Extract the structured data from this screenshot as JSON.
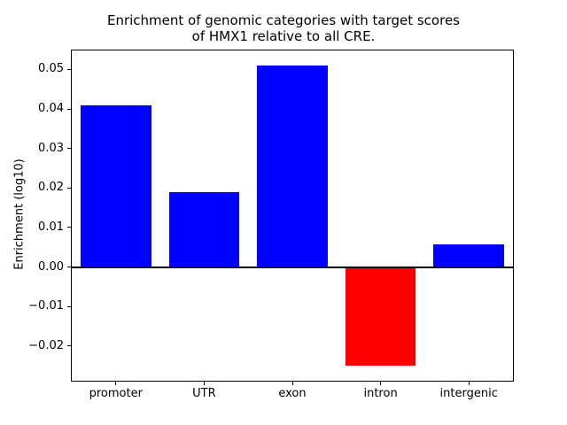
{
  "title_lines": [
    "Enrichment of genomic categories with target scores",
    "of HMX1 relative to all CRE."
  ],
  "chart_data": {
    "type": "bar",
    "title": "Enrichment of genomic categories with target scores of HMX1 relative to all CRE.",
    "categories": [
      "promoter",
      "UTR",
      "exon",
      "intron",
      "intergenic"
    ],
    "values": [
      0.041,
      0.019,
      0.051,
      -0.025,
      0.0057
    ],
    "bar_colors": [
      "#0000ff",
      "#0000ff",
      "#0000ff",
      "#ff0000",
      "#0000ff"
    ],
    "xlabel": "",
    "ylabel": "Enrichment (log10)",
    "ylim": [
      -0.0288,
      0.0548
    ],
    "yticks": [
      -0.02,
      -0.01,
      0.0,
      0.01,
      0.02,
      0.03,
      0.04,
      0.05
    ],
    "ytick_labels": [
      "−0.02",
      "−0.01",
      "0.00",
      "0.01",
      "0.02",
      "0.03",
      "0.04",
      "0.05"
    ],
    "bar_width_fraction": 0.8,
    "zero_line": true,
    "grid": false,
    "legend": false
  },
  "colors": {
    "positive_bar": "#0000ff",
    "negative_bar": "#ff0000",
    "axis": "#000000",
    "background": "#ffffff"
  }
}
